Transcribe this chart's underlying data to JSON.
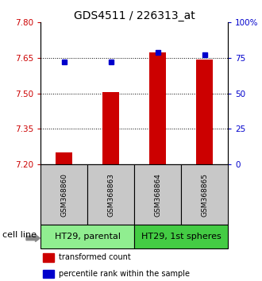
{
  "title": "GDS4511 / 226313_at",
  "samples": [
    "GSM368860",
    "GSM368863",
    "GSM368864",
    "GSM368865"
  ],
  "bar_values": [
    7.25,
    7.505,
    7.675,
    7.645
  ],
  "percentile_values": [
    72,
    72,
    79,
    77
  ],
  "y_min": 7.2,
  "y_max": 7.8,
  "y_ticks": [
    7.2,
    7.35,
    7.5,
    7.65,
    7.8
  ],
  "y2_ticks": [
    0,
    25,
    50,
    75,
    100
  ],
  "y2_labels": [
    "0",
    "25",
    "50",
    "75",
    "100%"
  ],
  "dotted_lines": [
    7.35,
    7.5,
    7.65
  ],
  "groups": [
    {
      "label": "HT29, parental",
      "samples_idx": [
        0,
        1
      ],
      "color": "#90EE90"
    },
    {
      "label": "HT29, 1st spheres",
      "samples_idx": [
        2,
        3
      ],
      "color": "#44CC44"
    }
  ],
  "bar_color": "#CC0000",
  "dot_color": "#0000CC",
  "sample_box_color": "#C8C8C8",
  "bar_width": 0.35,
  "title_fontsize": 10,
  "tick_fontsize": 7.5,
  "sample_label_fontsize": 6.5,
  "group_label_fontsize": 8,
  "legend_fontsize": 7,
  "cell_line_fontsize": 8,
  "y_tick_color": "#CC0000",
  "y2_tick_color": "#0000CC"
}
